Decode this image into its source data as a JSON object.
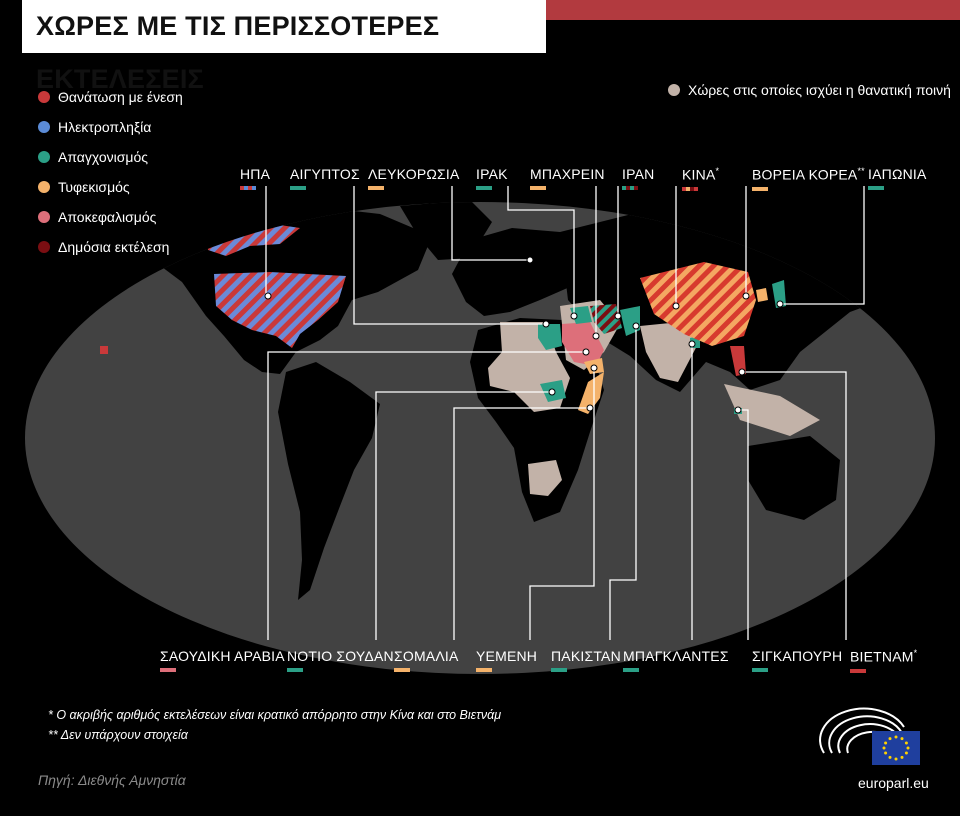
{
  "title": "ΧΩΡΕΣ ΜΕ ΤΙΣ ΠΕΡΙΣΣΟΤΕΡΕΣ ΕΚΤΕΛΕΣΕΙΣ",
  "legend": [
    {
      "label": "Θανάτωση με ένεση",
      "color": "#c9393a"
    },
    {
      "label": "Ηλεκτροπληξία",
      "color": "#5b8bd6"
    },
    {
      "label": "Απαγχονισμός",
      "color": "#2b9f86"
    },
    {
      "label": "Τυφεκισμός",
      "color": "#f4b26a"
    },
    {
      "label": "Αποκεφαλισμός",
      "color": "#dd6f7a"
    },
    {
      "label": "Δημόσια εκτέλεση",
      "color": "#7a0e12"
    }
  ],
  "legend_right": {
    "label": "Χώρες στις οποίες ισχύει η θανατική ποινή",
    "color": "#c2b2a8"
  },
  "top_countries": [
    {
      "name": "ΗΠΑ",
      "mark": "",
      "methods": [
        "#c9393a",
        "#5b8bd6"
      ]
    },
    {
      "name": "ΑΙΓΥΠΤΟΣ",
      "mark": "",
      "methods": [
        "#2b9f86"
      ]
    },
    {
      "name": "ΛΕΥΚΟΡΩΣΙΑ",
      "mark": "",
      "methods": [
        "#f4b26a"
      ]
    },
    {
      "name": "ΙΡΑΚ",
      "mark": "",
      "methods": [
        "#2b9f86"
      ]
    },
    {
      "name": "ΜΠΑΧΡΕΙΝ",
      "mark": "",
      "methods": [
        "#f4b26a"
      ]
    },
    {
      "name": "ΙΡΑΝ",
      "mark": "",
      "methods": [
        "#2b9f86",
        "#7a0e12"
      ]
    },
    {
      "name": "ΚΙΝΑ",
      "mark": "*",
      "methods": [
        "#c9393a",
        "#f4b26a",
        "#7a0e12"
      ]
    },
    {
      "name": "ΒΟΡΕΙΑ ΚΟΡΕΑ",
      "mark": "**",
      "methods": [
        "#f4b26a"
      ]
    },
    {
      "name": "ΙΑΠΩΝΙΑ",
      "mark": "",
      "methods": [
        "#2b9f86"
      ]
    }
  ],
  "bottom_countries": [
    {
      "name": "ΣΑΟΥΔΙΚΗ ΑΡΑΒΙΑ",
      "mark": "",
      "methods": [
        "#dd6f7a"
      ]
    },
    {
      "name": "ΝΟΤΙΟ ΣΟΥΔΑΝ",
      "mark": "",
      "methods": [
        "#2b9f86"
      ]
    },
    {
      "name": "ΣΟΜΑΛΙΑ",
      "mark": "",
      "methods": [
        "#f4b26a"
      ]
    },
    {
      "name": "ΥΕΜΕΝΗ",
      "mark": "",
      "methods": [
        "#f4b26a"
      ]
    },
    {
      "name": "ΠΑΚΙΣΤΑΝ",
      "mark": "",
      "methods": [
        "#2b9f86"
      ]
    },
    {
      "name": "ΜΠΑΓΚΛΑΝΤΕΣ",
      "mark": "",
      "methods": [
        "#2b9f86"
      ]
    },
    {
      "name": "ΣΙΓΚΑΠΟΥΡΗ",
      "mark": "",
      "methods": [
        "#2b9f86"
      ]
    },
    {
      "name": "ΒΙΕΤΝΑΜ",
      "mark": "*",
      "methods": [
        "#c9393a"
      ]
    }
  ],
  "footnotes": [
    "*  Ο ακριβής αριθμός εκτελέσεων είναι κρατικό απόρρητο στην Κίνα και στο Βιετνάμ",
    "**  Δεν υπάρχουν στοιχεία"
  ],
  "source": "Πηγή: Διεθνής Αμνηστία",
  "brand": "europarl.eu"
}
